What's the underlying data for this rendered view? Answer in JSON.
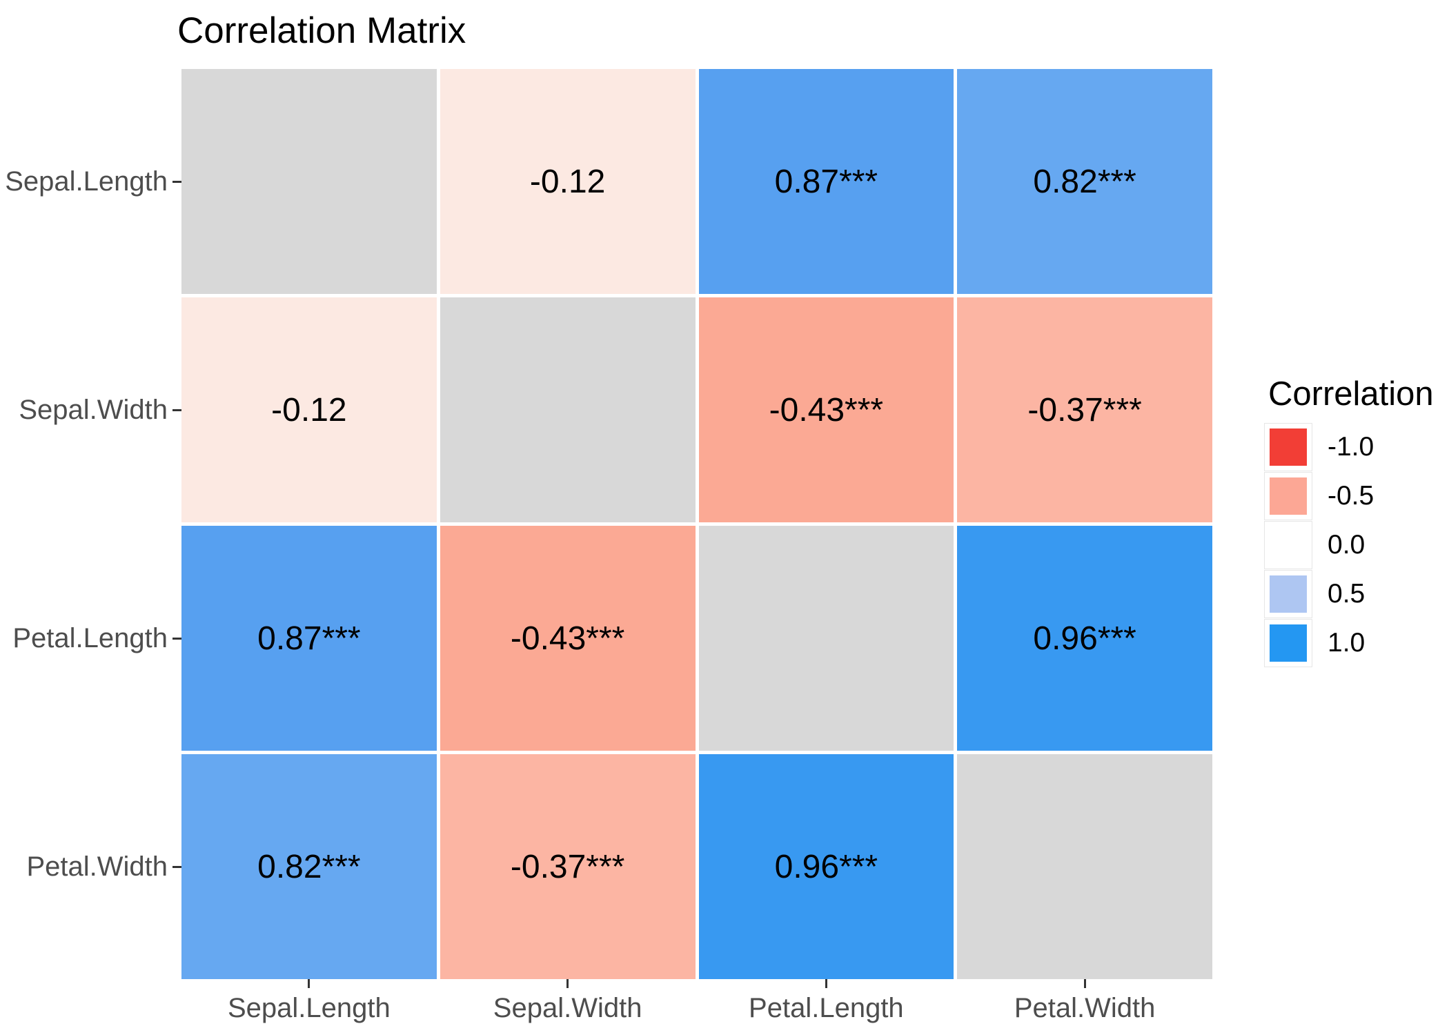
{
  "title": "Correlation Matrix",
  "legend": {
    "title": "Correlation",
    "entries": [
      {
        "label": "-1.0",
        "color": "#F23E36"
      },
      {
        "label": "-0.5",
        "color": "#FCA795"
      },
      {
        "label": "0.0",
        "color": "#FFFFFF"
      },
      {
        "label": "0.5",
        "color": "#AEC6F2"
      },
      {
        "label": "1.0",
        "color": "#2497F2"
      }
    ]
  },
  "chart_data": {
    "type": "heatmap",
    "title": "Correlation Matrix",
    "variables": [
      "Sepal.Length",
      "Sepal.Width",
      "Petal.Length",
      "Petal.Width"
    ],
    "x_tick_labels": [
      "Sepal.Length",
      "Sepal.Width",
      "Petal.Length",
      "Petal.Width"
    ],
    "y_tick_labels": [
      "Sepal.Length",
      "Sepal.Width",
      "Petal.Length",
      "Petal.Width"
    ],
    "matrix": [
      [
        null,
        -0.12,
        0.87,
        0.82
      ],
      [
        -0.12,
        null,
        -0.43,
        -0.37
      ],
      [
        0.87,
        -0.43,
        null,
        0.96
      ],
      [
        0.82,
        -0.37,
        0.96,
        null
      ]
    ],
    "cell_labels": [
      [
        "",
        "-0.12",
        "0.87***",
        "0.82***"
      ],
      [
        "-0.12",
        "",
        "-0.43***",
        "-0.37***"
      ],
      [
        "0.87***",
        "-0.43***",
        "",
        "0.96***"
      ],
      [
        "0.82***",
        "-0.37***",
        "0.96***",
        ""
      ]
    ],
    "cell_colors": [
      [
        "#D8D8D8",
        "#FCE9E2",
        "#57A0F0",
        "#66A8F1"
      ],
      [
        "#FCE9E2",
        "#D8D8D8",
        "#FBA994",
        "#FCB5A3"
      ],
      [
        "#57A0F0",
        "#FBA994",
        "#D8D8D8",
        "#3899F1"
      ],
      [
        "#66A8F1",
        "#FCB5A3",
        "#3899F1",
        "#D8D8D8"
      ]
    ],
    "color_scale": {
      "domain": [
        -1.0,
        -0.5,
        0.0,
        0.5,
        1.0
      ],
      "colors": [
        "#F23E36",
        "#FCA795",
        "#FFFFFF",
        "#AEC6F2",
        "#2497F2"
      ],
      "legend_title": "Correlation",
      "legend_position": "right"
    },
    "diagonal_color": "#D8D8D8",
    "grid_gap_color": "#FFFFFF",
    "axis_text_color": "#4D4D4D",
    "cell_text_color": "#000000"
  }
}
